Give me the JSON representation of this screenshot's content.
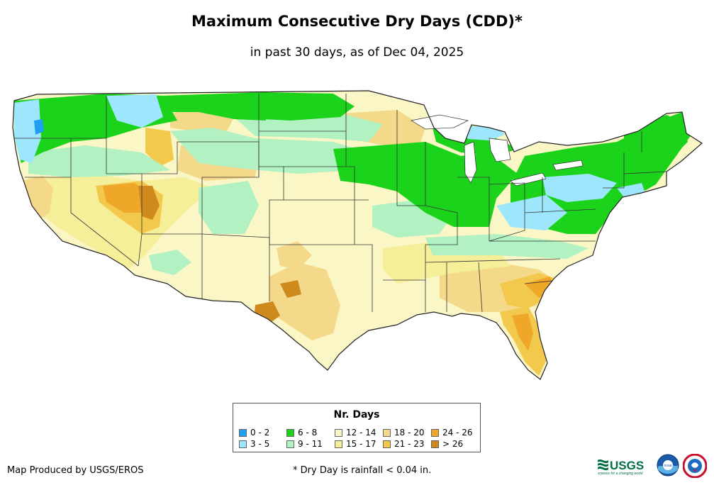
{
  "header": {
    "title": "Maximum Consecutive Dry Days (CDD)*",
    "subtitle": "in past 30 days, as of Dec 04, 2025"
  },
  "legend": {
    "title": "Nr. Days",
    "items": [
      {
        "label": "0 - 2",
        "color": "#1f9ff2"
      },
      {
        "label": "3 - 5",
        "color": "#9ee6fb"
      },
      {
        "label": "6 - 8",
        "color": "#1ad31a"
      },
      {
        "label": "9 - 11",
        "color": "#b2f1c2"
      },
      {
        "label": "12 - 14",
        "color": "#fbf6c6"
      },
      {
        "label": "15 - 17",
        "color": "#f6ef9a"
      },
      {
        "label": "18 - 20",
        "color": "#f5d98a"
      },
      {
        "label": "21 - 23",
        "color": "#f2c94c"
      },
      {
        "label": "24 - 26",
        "color": "#efa72a"
      },
      {
        "label": "> 26",
        "color": "#cf8a1e"
      }
    ]
  },
  "footer": {
    "credit": "Map Produced by USGS/EROS",
    "note": "* Dry Day is rainfall < 0.04 in."
  },
  "logos": {
    "usgs_text": "USGS",
    "usgs_tagline": "science for a changing world",
    "noaa_text": "noaa",
    "usgs_color": "#006f41"
  }
}
